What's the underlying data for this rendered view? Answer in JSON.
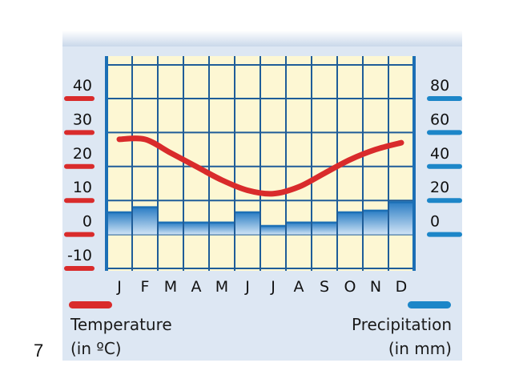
{
  "slide_number": "7",
  "chart_data": {
    "type": "climate-graph",
    "categories": [
      "J",
      "F",
      "M",
      "A",
      "M",
      "J",
      "J",
      "A",
      "S",
      "O",
      "N",
      "D"
    ],
    "series": [
      {
        "name": "Temperature (in ºC)",
        "type": "line",
        "axis": "left",
        "color": "#d92b2b",
        "values": [
          28,
          28,
          24,
          20,
          16,
          13,
          12,
          14,
          18,
          22,
          25,
          27
        ]
      },
      {
        "name": "Precipitation (in mm)",
        "type": "bar",
        "axis": "right",
        "color": "#1c86c8",
        "values": [
          13,
          16,
          7,
          7,
          7,
          13,
          5,
          7,
          7,
          13,
          14,
          19
        ]
      }
    ],
    "left_axis": {
      "ticks": [
        "40",
        "30",
        "20",
        "10",
        "0",
        "-10"
      ],
      "ylim": [
        -10,
        40
      ]
    },
    "right_axis": {
      "ticks": [
        "80",
        "60",
        "40",
        "20",
        "0"
      ],
      "ylim": [
        0,
        80
      ]
    },
    "grid": true
  },
  "legend": {
    "temperature_line1": "Temperature",
    "temperature_line2": "(in ºC)",
    "precipitation_line1": "Precipitation",
    "precipitation_line2": "(in mm)"
  }
}
